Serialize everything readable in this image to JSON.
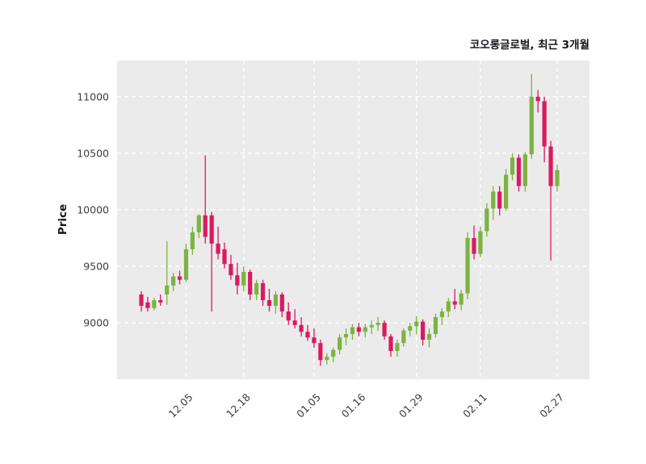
{
  "figure": {
    "title": "코오롱글로벌, 최근 3개월",
    "ylabel": "Price"
  },
  "chart_data": {
    "type": "candlestick",
    "title": "코오롱글로벌, 최근 3개월",
    "xlabel": "",
    "ylabel": "Price",
    "ylim": [
      8500,
      11320
    ],
    "yticks": [
      9000,
      9500,
      10000,
      10500,
      11000
    ],
    "xtick_labels": [
      "12.05",
      "12.18",
      "01.05",
      "01.16",
      "01.29",
      "02.11",
      "02.27"
    ],
    "xtick_indices": [
      7,
      16,
      27,
      34,
      43,
      53,
      65
    ],
    "grid": true,
    "legend": "none",
    "colors": {
      "up": "#7cb342",
      "down": "#d81b60",
      "plot_bg": "#ebebeb",
      "grid": "#ffffff",
      "tick_text": "#3d3d3d",
      "title_text": "#16161d"
    },
    "columns": [
      "date",
      "open",
      "high",
      "low",
      "close"
    ],
    "candles": [
      [
        "11.24",
        9250,
        9280,
        9100,
        9150
      ],
      [
        "11.27",
        9180,
        9230,
        9100,
        9130
      ],
      [
        "11.28",
        9130,
        9220,
        9110,
        9200
      ],
      [
        "11.29",
        9200,
        9250,
        9150,
        9180
      ],
      [
        "11.30",
        9250,
        9720,
        9160,
        9330
      ],
      [
        "12.01",
        9330,
        9440,
        9280,
        9410
      ],
      [
        "12.04",
        9410,
        9460,
        9340,
        9380
      ],
      [
        "12.05",
        9380,
        9700,
        9360,
        9650
      ],
      [
        "12.06",
        9650,
        9850,
        9600,
        9800
      ],
      [
        "12.07",
        9800,
        9960,
        9750,
        9950
      ],
      [
        "12.08",
        9950,
        10480,
        9700,
        9760
      ],
      [
        "12.11",
        9950,
        9980,
        9100,
        9700
      ],
      [
        "12.12",
        9700,
        9850,
        9560,
        9610
      ],
      [
        "12.13",
        9650,
        9710,
        9480,
        9520
      ],
      [
        "12.14",
        9520,
        9600,
        9380,
        9420
      ],
      [
        "12.15",
        9420,
        9530,
        9250,
        9330
      ],
      [
        "12.18",
        9330,
        9500,
        9280,
        9450
      ],
      [
        "12.19",
        9450,
        9470,
        9200,
        9250
      ],
      [
        "12.20",
        9250,
        9380,
        9200,
        9350
      ],
      [
        "12.21",
        9350,
        9380,
        9150,
        9200
      ],
      [
        "12.22",
        9200,
        9300,
        9100,
        9150
      ],
      [
        "12.26",
        9150,
        9280,
        9080,
        9250
      ],
      [
        "12.27",
        9250,
        9270,
        9050,
        9100
      ],
      [
        "12.28",
        9100,
        9180,
        8980,
        9020
      ],
      [
        "01.02",
        9020,
        9120,
        8950,
        8980
      ],
      [
        "01.03",
        8980,
        9050,
        8880,
        8920
      ],
      [
        "01.04",
        8920,
        8980,
        8840,
        8870
      ],
      [
        "01.05",
        8870,
        8950,
        8780,
        8820
      ],
      [
        "01.08",
        8820,
        8850,
        8620,
        8670
      ],
      [
        "01.09",
        8670,
        8730,
        8630,
        8700
      ],
      [
        "01.10",
        8700,
        8780,
        8650,
        8760
      ],
      [
        "01.11",
        8760,
        8900,
        8720,
        8870
      ],
      [
        "01.12",
        8870,
        8950,
        8800,
        8900
      ],
      [
        "01.15",
        8900,
        8990,
        8850,
        8960
      ],
      [
        "01.16",
        8960,
        9000,
        8880,
        8920
      ],
      [
        "01.17",
        8920,
        8990,
        8870,
        8960
      ],
      [
        "01.18",
        8960,
        9020,
        8900,
        8980
      ],
      [
        "01.19",
        8980,
        9050,
        8930,
        9000
      ],
      [
        "01.22",
        9000,
        9020,
        8850,
        8880
      ],
      [
        "01.23",
        8880,
        8900,
        8700,
        8750
      ],
      [
        "01.24",
        8750,
        8850,
        8700,
        8820
      ],
      [
        "01.25",
        8820,
        8950,
        8790,
        8930
      ],
      [
        "01.26",
        8930,
        9000,
        8880,
        8970
      ],
      [
        "01.29",
        8970,
        9060,
        8900,
        9010
      ],
      [
        "01.30",
        9010,
        9030,
        8800,
        8850
      ],
      [
        "01.31",
        8850,
        8950,
        8780,
        8900
      ],
      [
        "02.01",
        8900,
        9080,
        8870,
        9050
      ],
      [
        "02.02",
        9050,
        9130,
        8980,
        9100
      ],
      [
        "02.05",
        9100,
        9220,
        9050,
        9190
      ],
      [
        "02.06",
        9190,
        9300,
        9120,
        9160
      ],
      [
        "02.07",
        9160,
        9290,
        9110,
        9260
      ],
      [
        "02.08",
        9260,
        9800,
        9210,
        9750
      ],
      [
        "02.09",
        9750,
        9860,
        9560,
        9610
      ],
      [
        "02.11",
        9610,
        9850,
        9580,
        9810
      ],
      [
        "02.12",
        9810,
        10060,
        9760,
        10010
      ],
      [
        "02.13",
        10010,
        10210,
        9910,
        10160
      ],
      [
        "02.14",
        10160,
        10210,
        9950,
        10010
      ],
      [
        "02.15",
        10010,
        10360,
        9990,
        10310
      ],
      [
        "02.16",
        10310,
        10500,
        10260,
        10460
      ],
      [
        "02.19",
        10460,
        10490,
        10160,
        10210
      ],
      [
        "02.20",
        10210,
        10510,
        10160,
        10490
      ],
      [
        "02.21",
        10490,
        11200,
        10450,
        11000
      ],
      [
        "02.22",
        11000,
        11060,
        10860,
        10960
      ],
      [
        "02.23",
        10960,
        11000,
        10420,
        10560
      ],
      [
        "02.26",
        10560,
        10610,
        9550,
        10210
      ],
      [
        "02.27",
        10210,
        10400,
        10160,
        10350
      ]
    ]
  }
}
